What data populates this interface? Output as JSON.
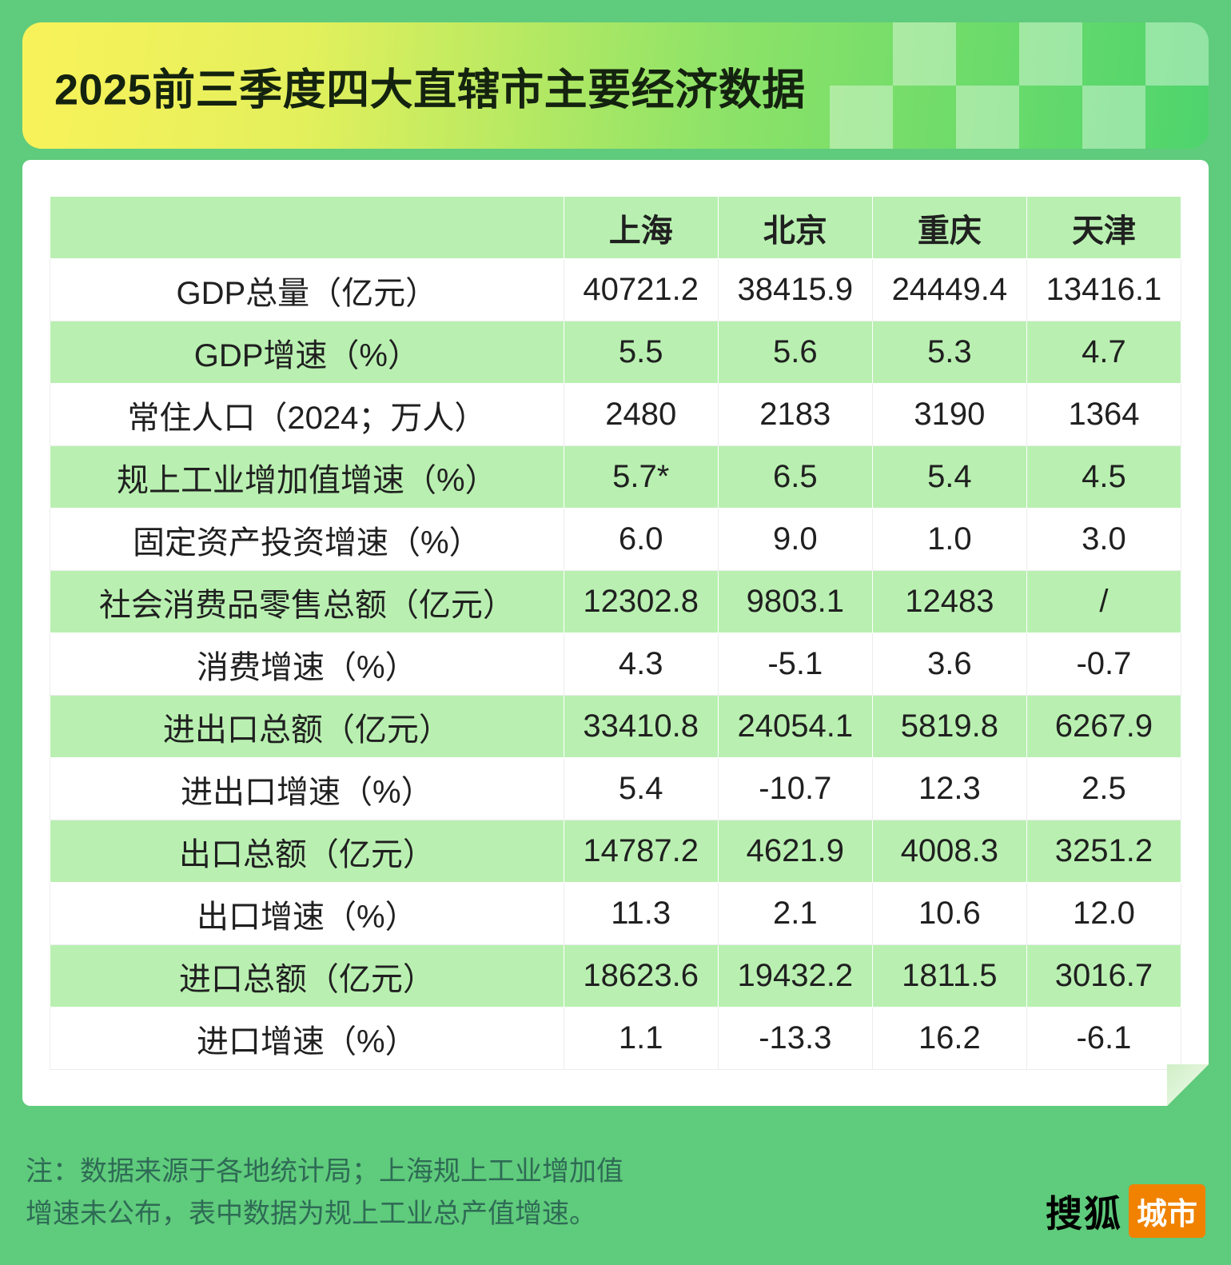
{
  "header": {
    "title": "2025前三季度四大直辖市主要经济数据"
  },
  "chart_data": {
    "type": "table",
    "title": "2025前三季度四大直辖市主要经济数据",
    "columns": [
      "上海",
      "北京",
      "重庆",
      "天津"
    ],
    "rows": [
      {
        "label": "GDP总量（亿元）",
        "values": [
          "40721.2",
          "38415.9",
          "24449.4",
          "13416.1"
        ]
      },
      {
        "label": "GDP增速（%）",
        "values": [
          "5.5",
          "5.6",
          "5.3",
          "4.7"
        ]
      },
      {
        "label": "常住人口（2024；万人）",
        "values": [
          "2480",
          "2183",
          "3190",
          "1364"
        ]
      },
      {
        "label": "规上工业增加值增速（%）",
        "values": [
          "5.7*",
          "6.5",
          "5.4",
          "4.5"
        ]
      },
      {
        "label": "固定资产投资增速（%）",
        "values": [
          "6.0",
          "9.0",
          "1.0",
          "3.0"
        ]
      },
      {
        "label": "社会消费品零售总额（亿元）",
        "values": [
          "12302.8",
          "9803.1",
          "12483",
          "/"
        ]
      },
      {
        "label": "消费增速（%）",
        "values": [
          "4.3",
          "-5.1",
          "3.6",
          "-0.7"
        ]
      },
      {
        "label": "进出口总额（亿元）",
        "values": [
          "33410.8",
          "24054.1",
          "5819.8",
          "6267.9"
        ]
      },
      {
        "label": "进出口增速（%）",
        "values": [
          "5.4",
          "-10.7",
          "12.3",
          "2.5"
        ]
      },
      {
        "label": "出口总额（亿元）",
        "values": [
          "14787.2",
          "4621.9",
          "4008.3",
          "3251.2"
        ]
      },
      {
        "label": "出口增速（%）",
        "values": [
          "11.3",
          "2.1",
          "10.6",
          "12.0"
        ]
      },
      {
        "label": "进口总额（亿元）",
        "values": [
          "18623.6",
          "19432.2",
          "1811.5",
          "3016.7"
        ]
      },
      {
        "label": "进口增速（%）",
        "values": [
          "1.1",
          "-13.3",
          "16.2",
          "-6.1"
        ]
      }
    ]
  },
  "note": {
    "lines": [
      "注：数据来源于各地统计局；上海规上工业增加值",
      "增速未公布，表中数据为规上工业总产值增速。"
    ]
  },
  "logo": {
    "wordmark": "搜狐",
    "badge": "城市"
  },
  "colors": {
    "background": "#5fcb7c",
    "row_green": "#b9f0b1",
    "banner_yellow": "#f9f25a",
    "banner_green": "#4ed46d",
    "note_text": "#2e6b55",
    "badge_orange": "#f08200",
    "text_dark": "#202020"
  }
}
